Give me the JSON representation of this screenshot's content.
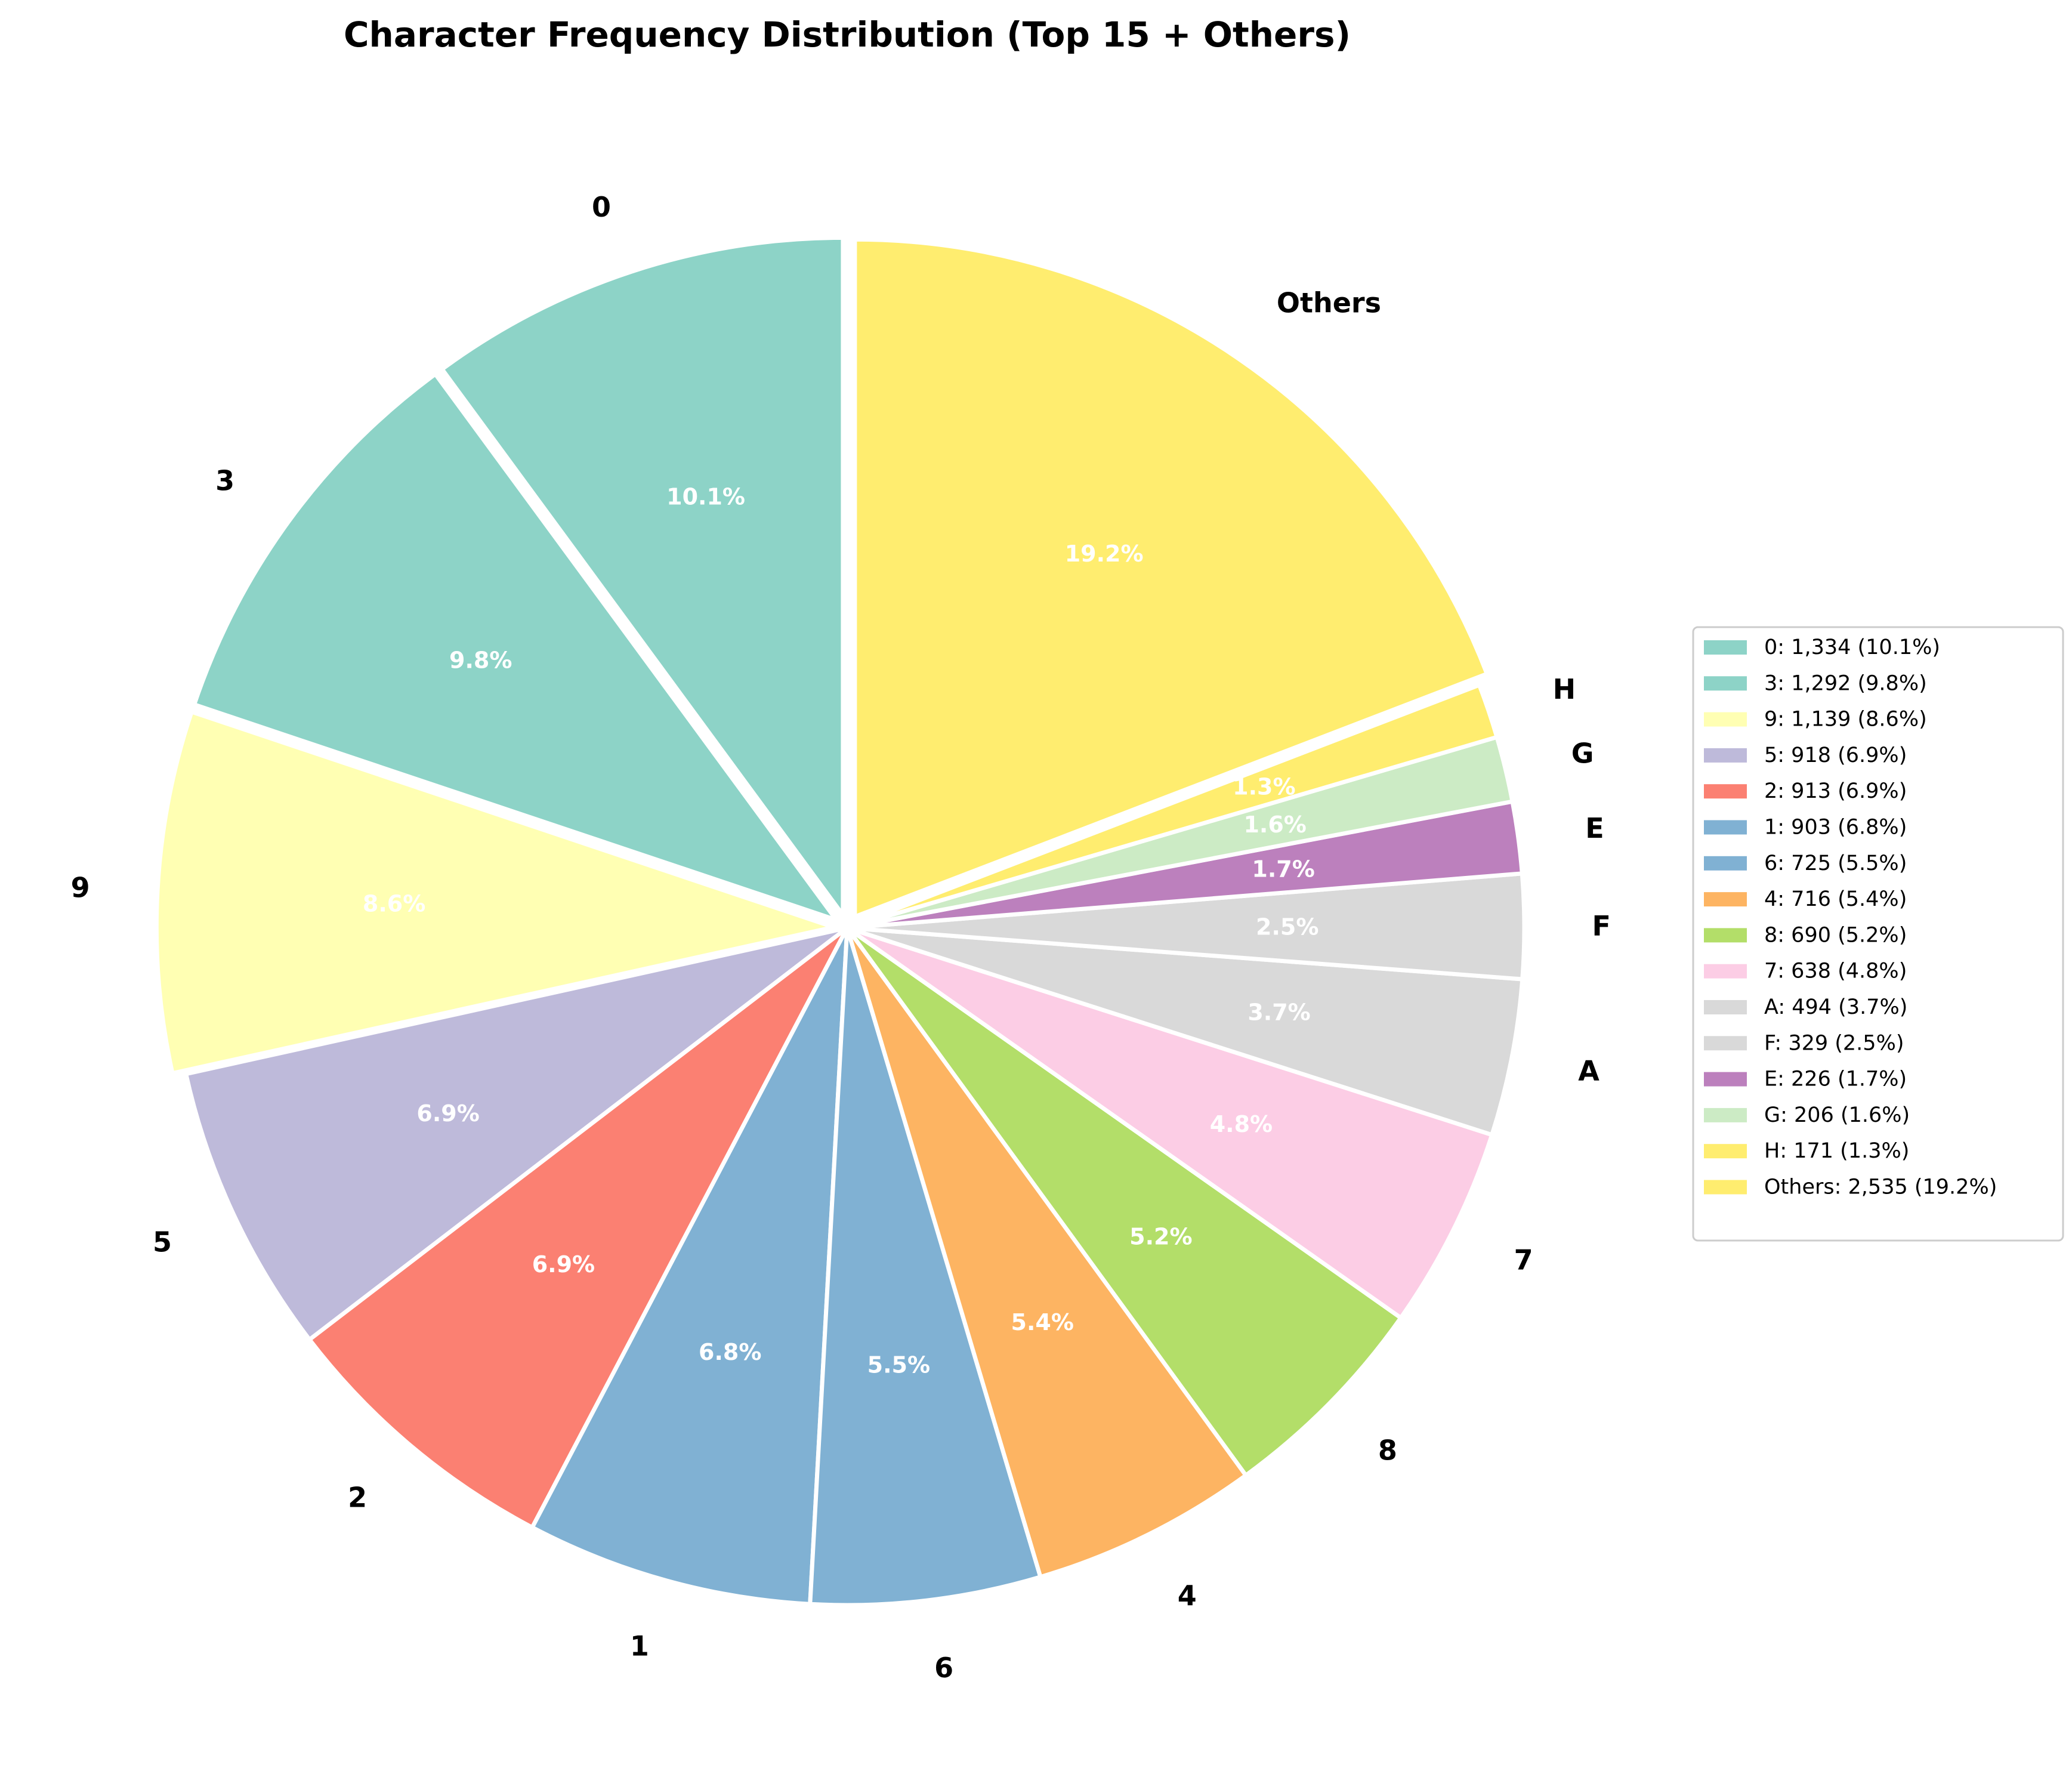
{
  "chart_data": {
    "type": "pie",
    "title": "Character Frequency Distribution (Top 15 + Others)",
    "legend_position": "right",
    "start_angle_deg": 90,
    "direction": "counterclockwise",
    "slices": [
      {
        "label": "0",
        "value": 1334,
        "percent_label": "10.1%",
        "legend": "0: 1,334 (10.1%)",
        "color": "#8dd3c7",
        "explode": 0.02
      },
      {
        "label": "3",
        "value": 1292,
        "percent_label": "9.8%",
        "legend": "3: 1,292 (9.8%)",
        "color": "#8dd3c7",
        "explode": 0.02
      },
      {
        "label": "9",
        "value": 1139,
        "percent_label": "8.6%",
        "legend": "9: 1,139 (8.6%)",
        "color": "#ffffb3",
        "explode": 0.02
      },
      {
        "label": "5",
        "value": 918,
        "percent_label": "6.9%",
        "legend": "5: 918 (6.9%)",
        "color": "#bebada",
        "explode": 0
      },
      {
        "label": "2",
        "value": 913,
        "percent_label": "6.9%",
        "legend": "2: 913 (6.9%)",
        "color": "#fb8072",
        "explode": 0
      },
      {
        "label": "1",
        "value": 903,
        "percent_label": "6.8%",
        "legend": "1: 903 (6.8%)",
        "color": "#80b1d3",
        "explode": 0
      },
      {
        "label": "6",
        "value": 725,
        "percent_label": "5.5%",
        "legend": "6: 725 (5.5%)",
        "color": "#80b1d3",
        "explode": 0
      },
      {
        "label": "4",
        "value": 716,
        "percent_label": "5.4%",
        "legend": "4: 716 (5.4%)",
        "color": "#fdb462",
        "explode": 0
      },
      {
        "label": "8",
        "value": 690,
        "percent_label": "5.2%",
        "legend": "8: 690 (5.2%)",
        "color": "#b3de69",
        "explode": 0
      },
      {
        "label": "7",
        "value": 638,
        "percent_label": "4.8%",
        "legend": "7: 638 (4.8%)",
        "color": "#fccde5",
        "explode": 0
      },
      {
        "label": "A",
        "value": 494,
        "percent_label": "3.7%",
        "legend": "A: 494 (3.7%)",
        "color": "#d9d9d9",
        "explode": 0
      },
      {
        "label": "F",
        "value": 329,
        "percent_label": "2.5%",
        "legend": "F: 329 (2.5%)",
        "color": "#d9d9d9",
        "explode": 0
      },
      {
        "label": "E",
        "value": 226,
        "percent_label": "1.7%",
        "legend": "E: 226 (1.7%)",
        "color": "#bc80bd",
        "explode": 0
      },
      {
        "label": "G",
        "value": 206,
        "percent_label": "1.6%",
        "legend": "G: 206 (1.6%)",
        "color": "#ccebc5",
        "explode": 0
      },
      {
        "label": "H",
        "value": 171,
        "percent_label": "1.3%",
        "legend": "H: 171 (1.3%)",
        "color": "#ffed6f",
        "explode": 0
      },
      {
        "label": "Others",
        "value": 2535,
        "percent_label": "19.2%",
        "legend": "Others: 2,535 (19.2%)",
        "color": "#ffed6f",
        "explode": 0.02
      }
    ]
  }
}
